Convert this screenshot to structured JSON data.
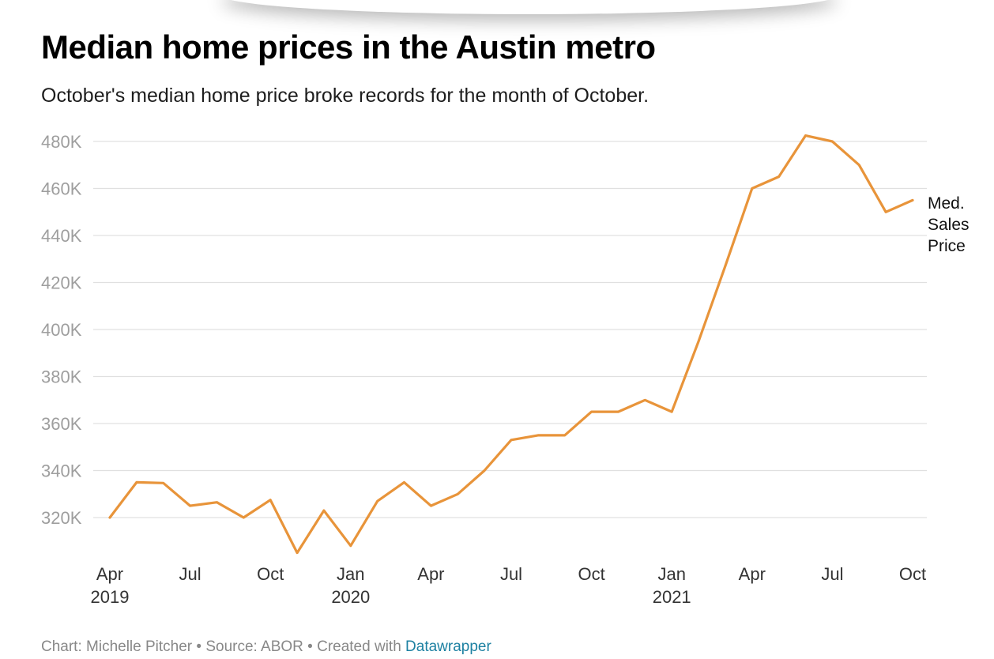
{
  "header": {
    "title": "Median home prices in the Austin metro",
    "subtitle": "October's median home price broke records for the month of October."
  },
  "footer": {
    "credit": "Chart: Michelle Pitcher • Source: ABOR • Created with ",
    "link_label": "Datawrapper"
  },
  "colors": {
    "line": "#e8943a",
    "grid": "#e0e0e0",
    "tick_text": "#9e9e9e",
    "axis_text": "#333333",
    "link": "#1d81a2"
  },
  "chart_data": {
    "type": "line",
    "title": "Median home prices in the Austin metro",
    "subtitle": "October's median home price broke records for the month of October.",
    "xlabel": "",
    "ylabel": "",
    "ylim": [
      300000,
      480000
    ],
    "yticks": [
      320000,
      340000,
      360000,
      380000,
      400000,
      420000,
      440000,
      460000,
      480000
    ],
    "ytick_labels": [
      "320K",
      "340K",
      "360K",
      "380K",
      "400K",
      "420K",
      "440K",
      "460K",
      "480K"
    ],
    "grid": true,
    "x": [
      "2019-04",
      "2019-05",
      "2019-06",
      "2019-07",
      "2019-08",
      "2019-09",
      "2019-10",
      "2019-11",
      "2019-12",
      "2020-01",
      "2020-02",
      "2020-03",
      "2020-04",
      "2020-05",
      "2020-06",
      "2020-07",
      "2020-08",
      "2020-09",
      "2020-10",
      "2020-11",
      "2020-12",
      "2021-01",
      "2021-02",
      "2021-03",
      "2021-04",
      "2021-05",
      "2021-06",
      "2021-07",
      "2021-08",
      "2021-09",
      "2021-10"
    ],
    "xticks": [
      {
        "index": 0,
        "label": "Apr",
        "year": "2019"
      },
      {
        "index": 3,
        "label": "Jul",
        "year": ""
      },
      {
        "index": 6,
        "label": "Oct",
        "year": ""
      },
      {
        "index": 9,
        "label": "Jan",
        "year": "2020"
      },
      {
        "index": 12,
        "label": "Apr",
        "year": ""
      },
      {
        "index": 15,
        "label": "Jul",
        "year": ""
      },
      {
        "index": 18,
        "label": "Oct",
        "year": ""
      },
      {
        "index": 21,
        "label": "Jan",
        "year": "2021"
      },
      {
        "index": 24,
        "label": "Apr",
        "year": ""
      },
      {
        "index": 27,
        "label": "Jul",
        "year": ""
      },
      {
        "index": 30,
        "label": "Oct",
        "year": ""
      }
    ],
    "series": [
      {
        "name": "Med. Sales Price",
        "label_lines": [
          "Med.",
          "Sales",
          "Price"
        ],
        "values": [
          320000,
          335000,
          334700,
          325000,
          326500,
          320000,
          327500,
          305000,
          323000,
          308000,
          327000,
          335000,
          325000,
          330000,
          340000,
          353000,
          355000,
          355000,
          365000,
          365000,
          370000,
          365000,
          395000,
          427000,
          460000,
          465000,
          482500,
          480000,
          470000,
          450000,
          455000
        ]
      }
    ]
  }
}
